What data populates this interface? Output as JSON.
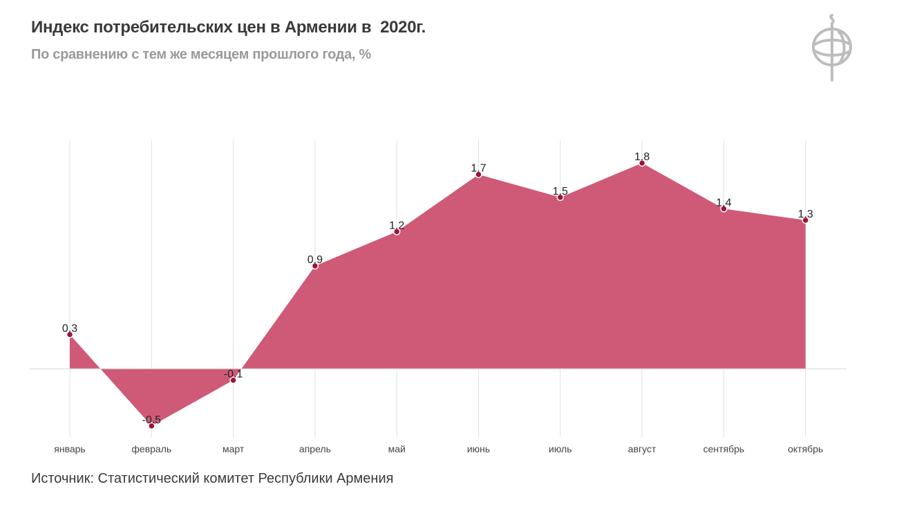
{
  "header": {
    "title": "Индекс потребительских цен в Армении в  2020г.",
    "subtitle": "По сравнению с тем же месяцем прошлого года, %"
  },
  "footer": {
    "source": "Источник: Статистический комитет Республики Армения"
  },
  "logo": {
    "icon": "phi-logo-icon"
  },
  "colors": {
    "area": "#cf5a78",
    "marker": "#a01237",
    "gridline": "#e0e0e0",
    "zeroline": "#d6d6d6"
  },
  "chart_data": {
    "type": "area",
    "categories": [
      "январь",
      "февраль",
      "март",
      "апрель",
      "май",
      "июнь",
      "июль",
      "август",
      "сентябрь",
      "октябрь"
    ],
    "values": [
      0.3,
      -0.5,
      -0.1,
      0.9,
      1.2,
      1.7,
      1.5,
      1.8,
      1.4,
      1.3
    ],
    "value_labels": [
      "0.3",
      "-0.5",
      "-0.1",
      "0.9",
      "1.2",
      "1.7",
      "1.5",
      "1.8",
      "1.4",
      "1.3"
    ],
    "title": "Индекс потребительских цен в Армении в  2020г.",
    "subtitle": "По сравнению с тем же месяцем прошлого года, %",
    "ylim": [
      -0.6,
      2.0
    ],
    "grid": "vertical",
    "legend": "none"
  }
}
